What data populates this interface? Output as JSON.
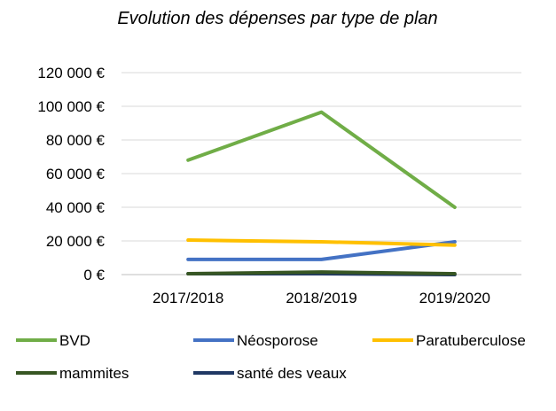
{
  "chart_data": {
    "type": "line",
    "title": "Evolution des dépenses par type de plan",
    "xlabel": "",
    "ylabel": "",
    "categories": [
      "2017/2018",
      "2018/2019",
      "2019/2020"
    ],
    "y_ticks": [
      "0 €",
      "20 000 €",
      "40 000 €",
      "60 000 €",
      "80 000 €",
      "100 000 €",
      "120 000 €"
    ],
    "ylim": [
      0,
      120000
    ],
    "grid": true,
    "legend_position": "bottom",
    "series": [
      {
        "name": "BVD",
        "color": "#70AD47",
        "values": [
          68000,
          96500,
          40000
        ]
      },
      {
        "name": "Néosporose",
        "color": "#4472C4",
        "values": [
          9000,
          9000,
          19500
        ]
      },
      {
        "name": "Paratuberculose",
        "color": "#FFC000",
        "values": [
          20500,
          19500,
          17500
        ]
      },
      {
        "name": "mammites",
        "color": "#375623",
        "values": [
          500,
          1500,
          500
        ]
      },
      {
        "name": "santé des veaux",
        "color": "#203864",
        "values": [
          500,
          500,
          0
        ]
      }
    ]
  }
}
